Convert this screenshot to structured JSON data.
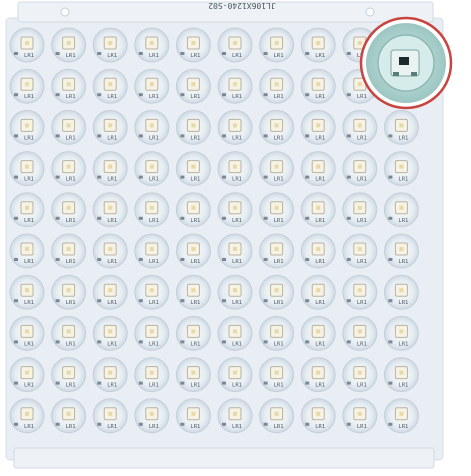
{
  "panel": {
    "marking": "JL106X1240-S02",
    "grid": {
      "rows": 10,
      "cols": 10
    },
    "pad_label": "LR1"
  },
  "colors": {
    "background": "#ffffff",
    "board": "#e9eef4",
    "pcb_edge": "#d7dee7",
    "led_ring": "#d9e3ec",
    "led_center": "#f4f1e7",
    "zoom_border": "#c9443f",
    "zoom_fill": "#b8d8d5"
  }
}
